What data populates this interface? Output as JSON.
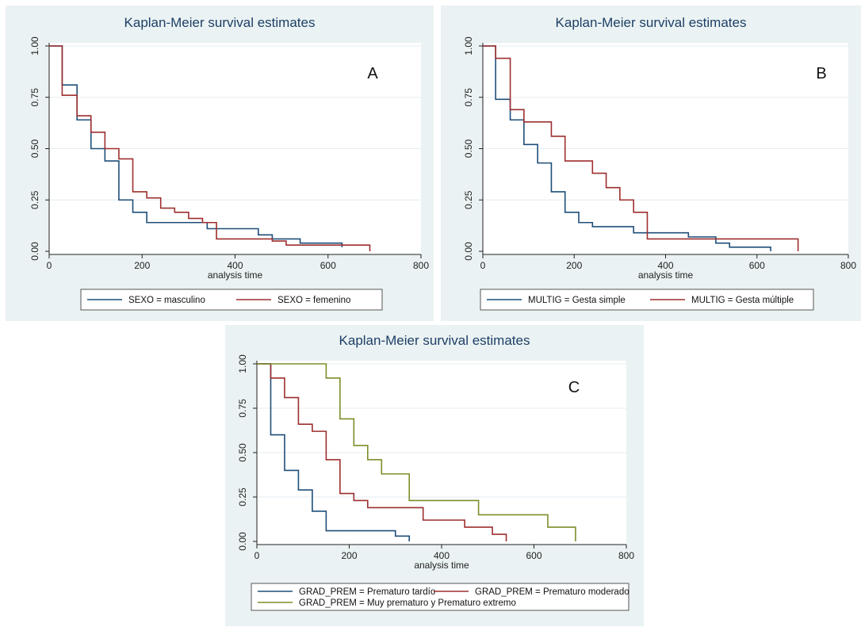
{
  "chart_data": [
    {
      "id": "A",
      "type": "line",
      "title": "Kaplan-Meier survival estimates",
      "panel_label": "A",
      "xlabel": "analysis time",
      "ylabel": "",
      "xlim": [
        0,
        800
      ],
      "ylim": [
        0,
        1
      ],
      "xticks": [
        "0",
        "200",
        "400",
        "600",
        "800"
      ],
      "yticks": [
        "0.00",
        "0.25",
        "0.50",
        "0.75",
        "1.00"
      ],
      "grid": true,
      "legend_position": "bottom",
      "series": [
        {
          "name": "SEXO = masculino",
          "color": "#1f4e79",
          "steps": [
            [
              0,
              1.0
            ],
            [
              28,
              0.81
            ],
            [
              60,
              0.64
            ],
            [
              90,
              0.5
            ],
            [
              120,
              0.44
            ],
            [
              150,
              0.25
            ],
            [
              180,
              0.19
            ],
            [
              210,
              0.14
            ],
            [
              340,
              0.11
            ],
            [
              450,
              0.08
            ],
            [
              480,
              0.06
            ],
            [
              540,
              0.04
            ],
            [
              630,
              0.02
            ]
          ],
          "end_x": 630
        },
        {
          "name": "SEXO = femenino",
          "color": "#9e2f2f",
          "steps": [
            [
              0,
              1.0
            ],
            [
              28,
              0.76
            ],
            [
              60,
              0.66
            ],
            [
              90,
              0.58
            ],
            [
              120,
              0.5
            ],
            [
              150,
              0.45
            ],
            [
              180,
              0.29
            ],
            [
              210,
              0.26
            ],
            [
              240,
              0.21
            ],
            [
              270,
              0.19
            ],
            [
              300,
              0.16
            ],
            [
              330,
              0.14
            ],
            [
              360,
              0.06
            ],
            [
              480,
              0.05
            ],
            [
              510,
              0.03
            ],
            [
              690,
              0.0
            ]
          ],
          "end_x": 690
        }
      ]
    },
    {
      "id": "B",
      "type": "line",
      "title": "Kaplan-Meier survival estimates",
      "panel_label": "B",
      "xlabel": "analysis time",
      "ylabel": "",
      "xlim": [
        0,
        800
      ],
      "ylim": [
        0,
        1
      ],
      "xticks": [
        "0",
        "200",
        "400",
        "600",
        "800"
      ],
      "yticks": [
        "0.00",
        "0.25",
        "0.50",
        "0.75",
        "1.00"
      ],
      "grid": true,
      "legend_position": "bottom",
      "series": [
        {
          "name": "MULTIG = Gesta simple",
          "color": "#1f4e79",
          "steps": [
            [
              0,
              1.0
            ],
            [
              28,
              0.74
            ],
            [
              60,
              0.64
            ],
            [
              90,
              0.52
            ],
            [
              120,
              0.43
            ],
            [
              150,
              0.29
            ],
            [
              180,
              0.19
            ],
            [
              210,
              0.14
            ],
            [
              240,
              0.12
            ],
            [
              330,
              0.09
            ],
            [
              450,
              0.07
            ],
            [
              510,
              0.04
            ],
            [
              540,
              0.02
            ],
            [
              630,
              0.0
            ]
          ],
          "end_x": 630
        },
        {
          "name": "MULTIG = Gesta múltiple",
          "color": "#9e2f2f",
          "steps": [
            [
              0,
              1.0
            ],
            [
              28,
              0.94
            ],
            [
              60,
              0.69
            ],
            [
              90,
              0.63
            ],
            [
              150,
              0.56
            ],
            [
              180,
              0.44
            ],
            [
              240,
              0.38
            ],
            [
              270,
              0.31
            ],
            [
              300,
              0.25
            ],
            [
              330,
              0.19
            ],
            [
              360,
              0.06
            ],
            [
              690,
              0.0
            ]
          ],
          "end_x": 690
        }
      ]
    },
    {
      "id": "C",
      "type": "line",
      "title": "Kaplan-Meier survival estimates",
      "panel_label": "C",
      "xlabel": "analysis time",
      "ylabel": "",
      "xlim": [
        0,
        800
      ],
      "ylim": [
        0,
        1
      ],
      "xticks": [
        "0",
        "200",
        "400",
        "600",
        "800"
      ],
      "yticks": [
        "0.00",
        "0.25",
        "0.50",
        "0.75",
        "1.00"
      ],
      "grid": true,
      "legend_position": "bottom",
      "series": [
        {
          "name": "GRAD_PREM = Prematuro tardío",
          "color": "#1f4e79",
          "steps": [
            [
              0,
              1.0
            ],
            [
              30,
              0.6
            ],
            [
              60,
              0.4
            ],
            [
              90,
              0.29
            ],
            [
              120,
              0.17
            ],
            [
              150,
              0.06
            ],
            [
              300,
              0.03
            ],
            [
              330,
              0.0
            ]
          ],
          "end_x": 330
        },
        {
          "name": "GRAD_PREM = Prematuro moderado",
          "color": "#9e2f2f",
          "steps": [
            [
              0,
              1.0
            ],
            [
              30,
              0.92
            ],
            [
              60,
              0.81
            ],
            [
              90,
              0.66
            ],
            [
              120,
              0.62
            ],
            [
              150,
              0.46
            ],
            [
              180,
              0.27
            ],
            [
              210,
              0.23
            ],
            [
              240,
              0.19
            ],
            [
              360,
              0.12
            ],
            [
              450,
              0.08
            ],
            [
              510,
              0.04
            ],
            [
              540,
              0.0
            ]
          ],
          "end_x": 540
        },
        {
          "name": "GRAD_PREM = Muy prematuro y Prematuro extremo",
          "color": "#7a8f2a",
          "steps": [
            [
              0,
              1.0
            ],
            [
              150,
              0.92
            ],
            [
              180,
              0.69
            ],
            [
              210,
              0.54
            ],
            [
              240,
              0.46
            ],
            [
              270,
              0.38
            ],
            [
              330,
              0.23
            ],
            [
              480,
              0.15
            ],
            [
              630,
              0.08
            ],
            [
              690,
              0.0
            ]
          ],
          "end_x": 690
        }
      ]
    }
  ]
}
